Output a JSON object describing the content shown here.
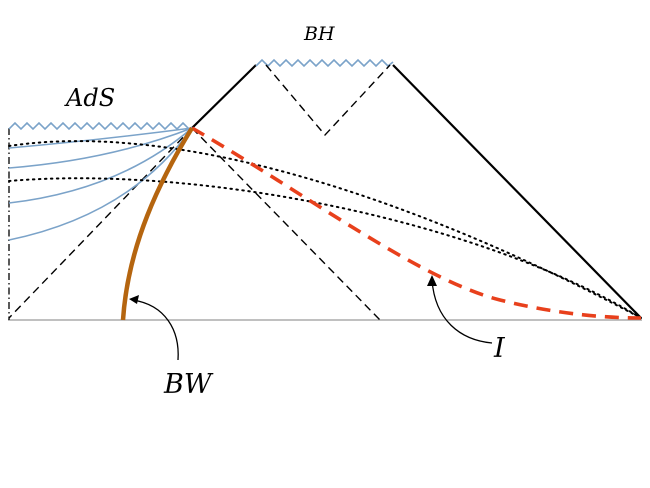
{
  "labels": {
    "bh": "BH",
    "ads": "AdS",
    "bw": "BW",
    "i": "I"
  },
  "colors": {
    "background": "#ffffff",
    "singularity": "#7ba3c9",
    "blue_curves": "#7ba3c9",
    "brane_world": "#b5650f",
    "red_dashed": "#e8401c",
    "black": "#000000",
    "axis": "#9a9a9a"
  }
}
